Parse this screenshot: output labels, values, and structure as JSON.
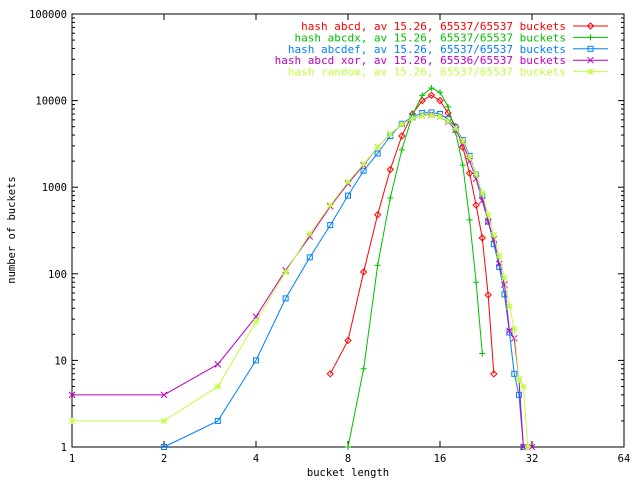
{
  "chart_data": {
    "type": "line",
    "xlabel": "bucket length",
    "ylabel": "number of buckets",
    "x_scale": "log2",
    "y_scale": "log10",
    "xlim": [
      1,
      64
    ],
    "ylim": [
      1,
      100000
    ],
    "x_ticks": [
      1,
      2,
      4,
      8,
      16,
      32,
      64
    ],
    "x_tick_labels": [
      "1",
      "2",
      "4",
      "8",
      "16",
      "32",
      "64"
    ],
    "y_ticks": [
      1,
      10,
      100,
      1000,
      10000,
      100000
    ],
    "y_tick_labels": [
      "1",
      "10",
      "100",
      "1000",
      "10000",
      "100000"
    ],
    "grid": false,
    "legend_position": "top-right",
    "series": [
      {
        "name": "hash abcd, av 15.26, 65537/65537 buckets",
        "color": "#ff0000",
        "marker": "diamond",
        "points": [
          [
            7,
            7
          ],
          [
            8,
            17
          ],
          [
            9,
            105
          ],
          [
            10,
            480
          ],
          [
            11,
            1600
          ],
          [
            12,
            3900
          ],
          [
            13,
            7000
          ],
          [
            14,
            10000
          ],
          [
            15,
            11500
          ],
          [
            16,
            10000
          ],
          [
            17,
            7200
          ],
          [
            18,
            5000
          ],
          [
            19,
            2900
          ],
          [
            20,
            1450
          ],
          [
            21,
            620
          ],
          [
            22,
            260
          ],
          [
            23,
            57
          ],
          [
            24,
            7
          ]
        ]
      },
      {
        "name": "hash abcdx, av 15.26, 65537/65537 buckets",
        "color": "#00c000",
        "marker": "plus",
        "points": [
          [
            8,
            1
          ],
          [
            9,
            8
          ],
          [
            10,
            125
          ],
          [
            11,
            750
          ],
          [
            12,
            2700
          ],
          [
            13,
            6800
          ],
          [
            14,
            11500
          ],
          [
            15,
            14000
          ],
          [
            16,
            12500
          ],
          [
            17,
            8500
          ],
          [
            18,
            4300
          ],
          [
            19,
            1800
          ],
          [
            20,
            420
          ],
          [
            21,
            80
          ],
          [
            22,
            12
          ]
        ]
      },
      {
        "name": "hash abcdef, av 15.26, 65537/65537 buckets",
        "color": "#0080ff",
        "marker": "square",
        "points": [
          [
            2,
            1
          ],
          [
            3,
            2
          ],
          [
            4,
            10
          ],
          [
            5,
            52
          ],
          [
            6,
            155
          ],
          [
            7,
            365
          ],
          [
            8,
            800
          ],
          [
            9,
            1550
          ],
          [
            10,
            2450
          ],
          [
            11,
            3900
          ],
          [
            12,
            5400
          ],
          [
            13,
            6500
          ],
          [
            14,
            7200
          ],
          [
            15,
            7300
          ],
          [
            16,
            7000
          ],
          [
            17,
            6100
          ],
          [
            18,
            4900
          ],
          [
            19,
            3500
          ],
          [
            20,
            2300
          ],
          [
            21,
            1400
          ],
          [
            22,
            800
          ],
          [
            23,
            400
          ],
          [
            24,
            220
          ],
          [
            25,
            120
          ],
          [
            26,
            58
          ],
          [
            27,
            21
          ],
          [
            28,
            7
          ],
          [
            29,
            4
          ],
          [
            30,
            1
          ]
        ]
      },
      {
        "name": "hash abcd xor, av 15.26, 65536/65537 buckets",
        "color": "#c000c0",
        "marker": "cross",
        "points": [
          [
            1,
            4
          ],
          [
            2,
            4
          ],
          [
            3,
            9
          ],
          [
            4,
            32
          ],
          [
            5,
            110
          ],
          [
            6,
            270
          ],
          [
            7,
            600
          ],
          [
            8,
            1100
          ],
          [
            9,
            1800
          ],
          [
            10,
            2900
          ],
          [
            11,
            4100
          ],
          [
            12,
            5300
          ],
          [
            13,
            6300
          ],
          [
            14,
            6700
          ],
          [
            15,
            6900
          ],
          [
            16,
            6500
          ],
          [
            17,
            5700
          ],
          [
            18,
            4600
          ],
          [
            19,
            3200
          ],
          [
            20,
            2000
          ],
          [
            21,
            1250
          ],
          [
            22,
            700
          ],
          [
            23,
            400
          ],
          [
            24,
            250
          ],
          [
            25,
            130
          ],
          [
            26,
            75
          ],
          [
            27,
            22
          ],
          [
            28,
            18
          ],
          [
            29,
            6
          ],
          [
            30,
            1
          ],
          [
            31,
            1
          ],
          [
            32,
            1
          ]
        ]
      },
      {
        "name": "hash random, av 15.26, 65537/65537 buckets",
        "color": "#c0ff40",
        "marker": "star",
        "points": [
          [
            1,
            2
          ],
          [
            2,
            2
          ],
          [
            3,
            5
          ],
          [
            4,
            28
          ],
          [
            5,
            105
          ],
          [
            6,
            290
          ],
          [
            7,
            620
          ],
          [
            8,
            1150
          ],
          [
            9,
            1850
          ],
          [
            10,
            2900
          ],
          [
            11,
            4100
          ],
          [
            12,
            5300
          ],
          [
            13,
            6300
          ],
          [
            14,
            6700
          ],
          [
            15,
            6800
          ],
          [
            16,
            6500
          ],
          [
            17,
            5800
          ],
          [
            18,
            4800
          ],
          [
            19,
            3400
          ],
          [
            20,
            2200
          ],
          [
            21,
            1400
          ],
          [
            22,
            850
          ],
          [
            23,
            480
          ],
          [
            24,
            280
          ],
          [
            25,
            160
          ],
          [
            26,
            90
          ],
          [
            27,
            42
          ],
          [
            28,
            23
          ],
          [
            29,
            6
          ],
          [
            30,
            5
          ],
          [
            31,
            1
          ]
        ]
      }
    ]
  }
}
